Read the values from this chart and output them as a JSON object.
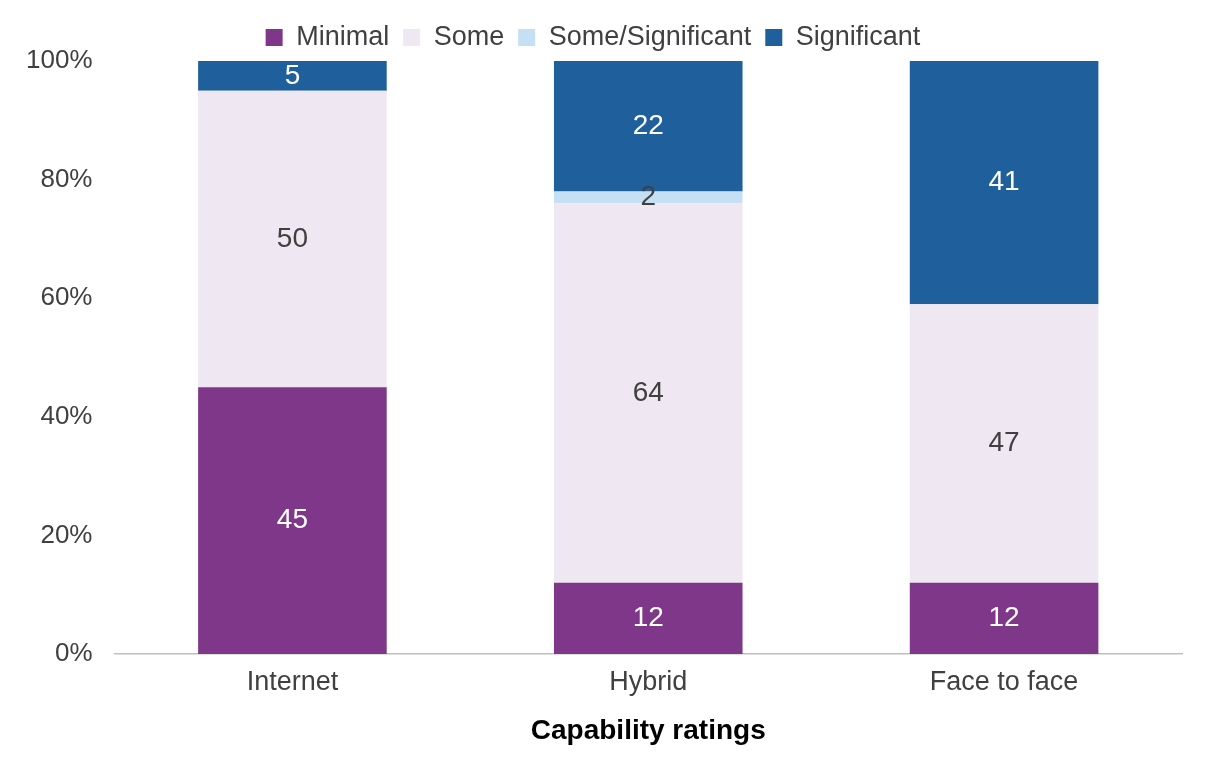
{
  "chart_data": {
    "type": "bar",
    "stacked": true,
    "xlabel": "Capability ratings",
    "categories": [
      "Internet",
      "Hybrid",
      "Face to face"
    ],
    "series": [
      {
        "name": "Minimal",
        "color": "#7f3789",
        "values": [
          45,
          12,
          12
        ]
      },
      {
        "name": "Some",
        "color": "#efe7f1",
        "values": [
          50,
          64,
          47
        ]
      },
      {
        "name": "Some/Significant",
        "color": "#c5e0f4",
        "values": [
          null,
          2,
          null
        ]
      },
      {
        "name": "Significant",
        "color": "#1f5f9c",
        "values": [
          5,
          22,
          41
        ]
      }
    ],
    "ylim": [
      0,
      100
    ],
    "yticks": [
      {
        "value": 0,
        "label": "0%"
      },
      {
        "value": 20,
        "label": "20%"
      },
      {
        "value": 40,
        "label": "40%"
      },
      {
        "value": 60,
        "label": "60%"
      },
      {
        "value": 80,
        "label": "80%"
      },
      {
        "value": 100,
        "label": "100%"
      }
    ],
    "data_labels": true,
    "legend": "top",
    "grid": false
  }
}
